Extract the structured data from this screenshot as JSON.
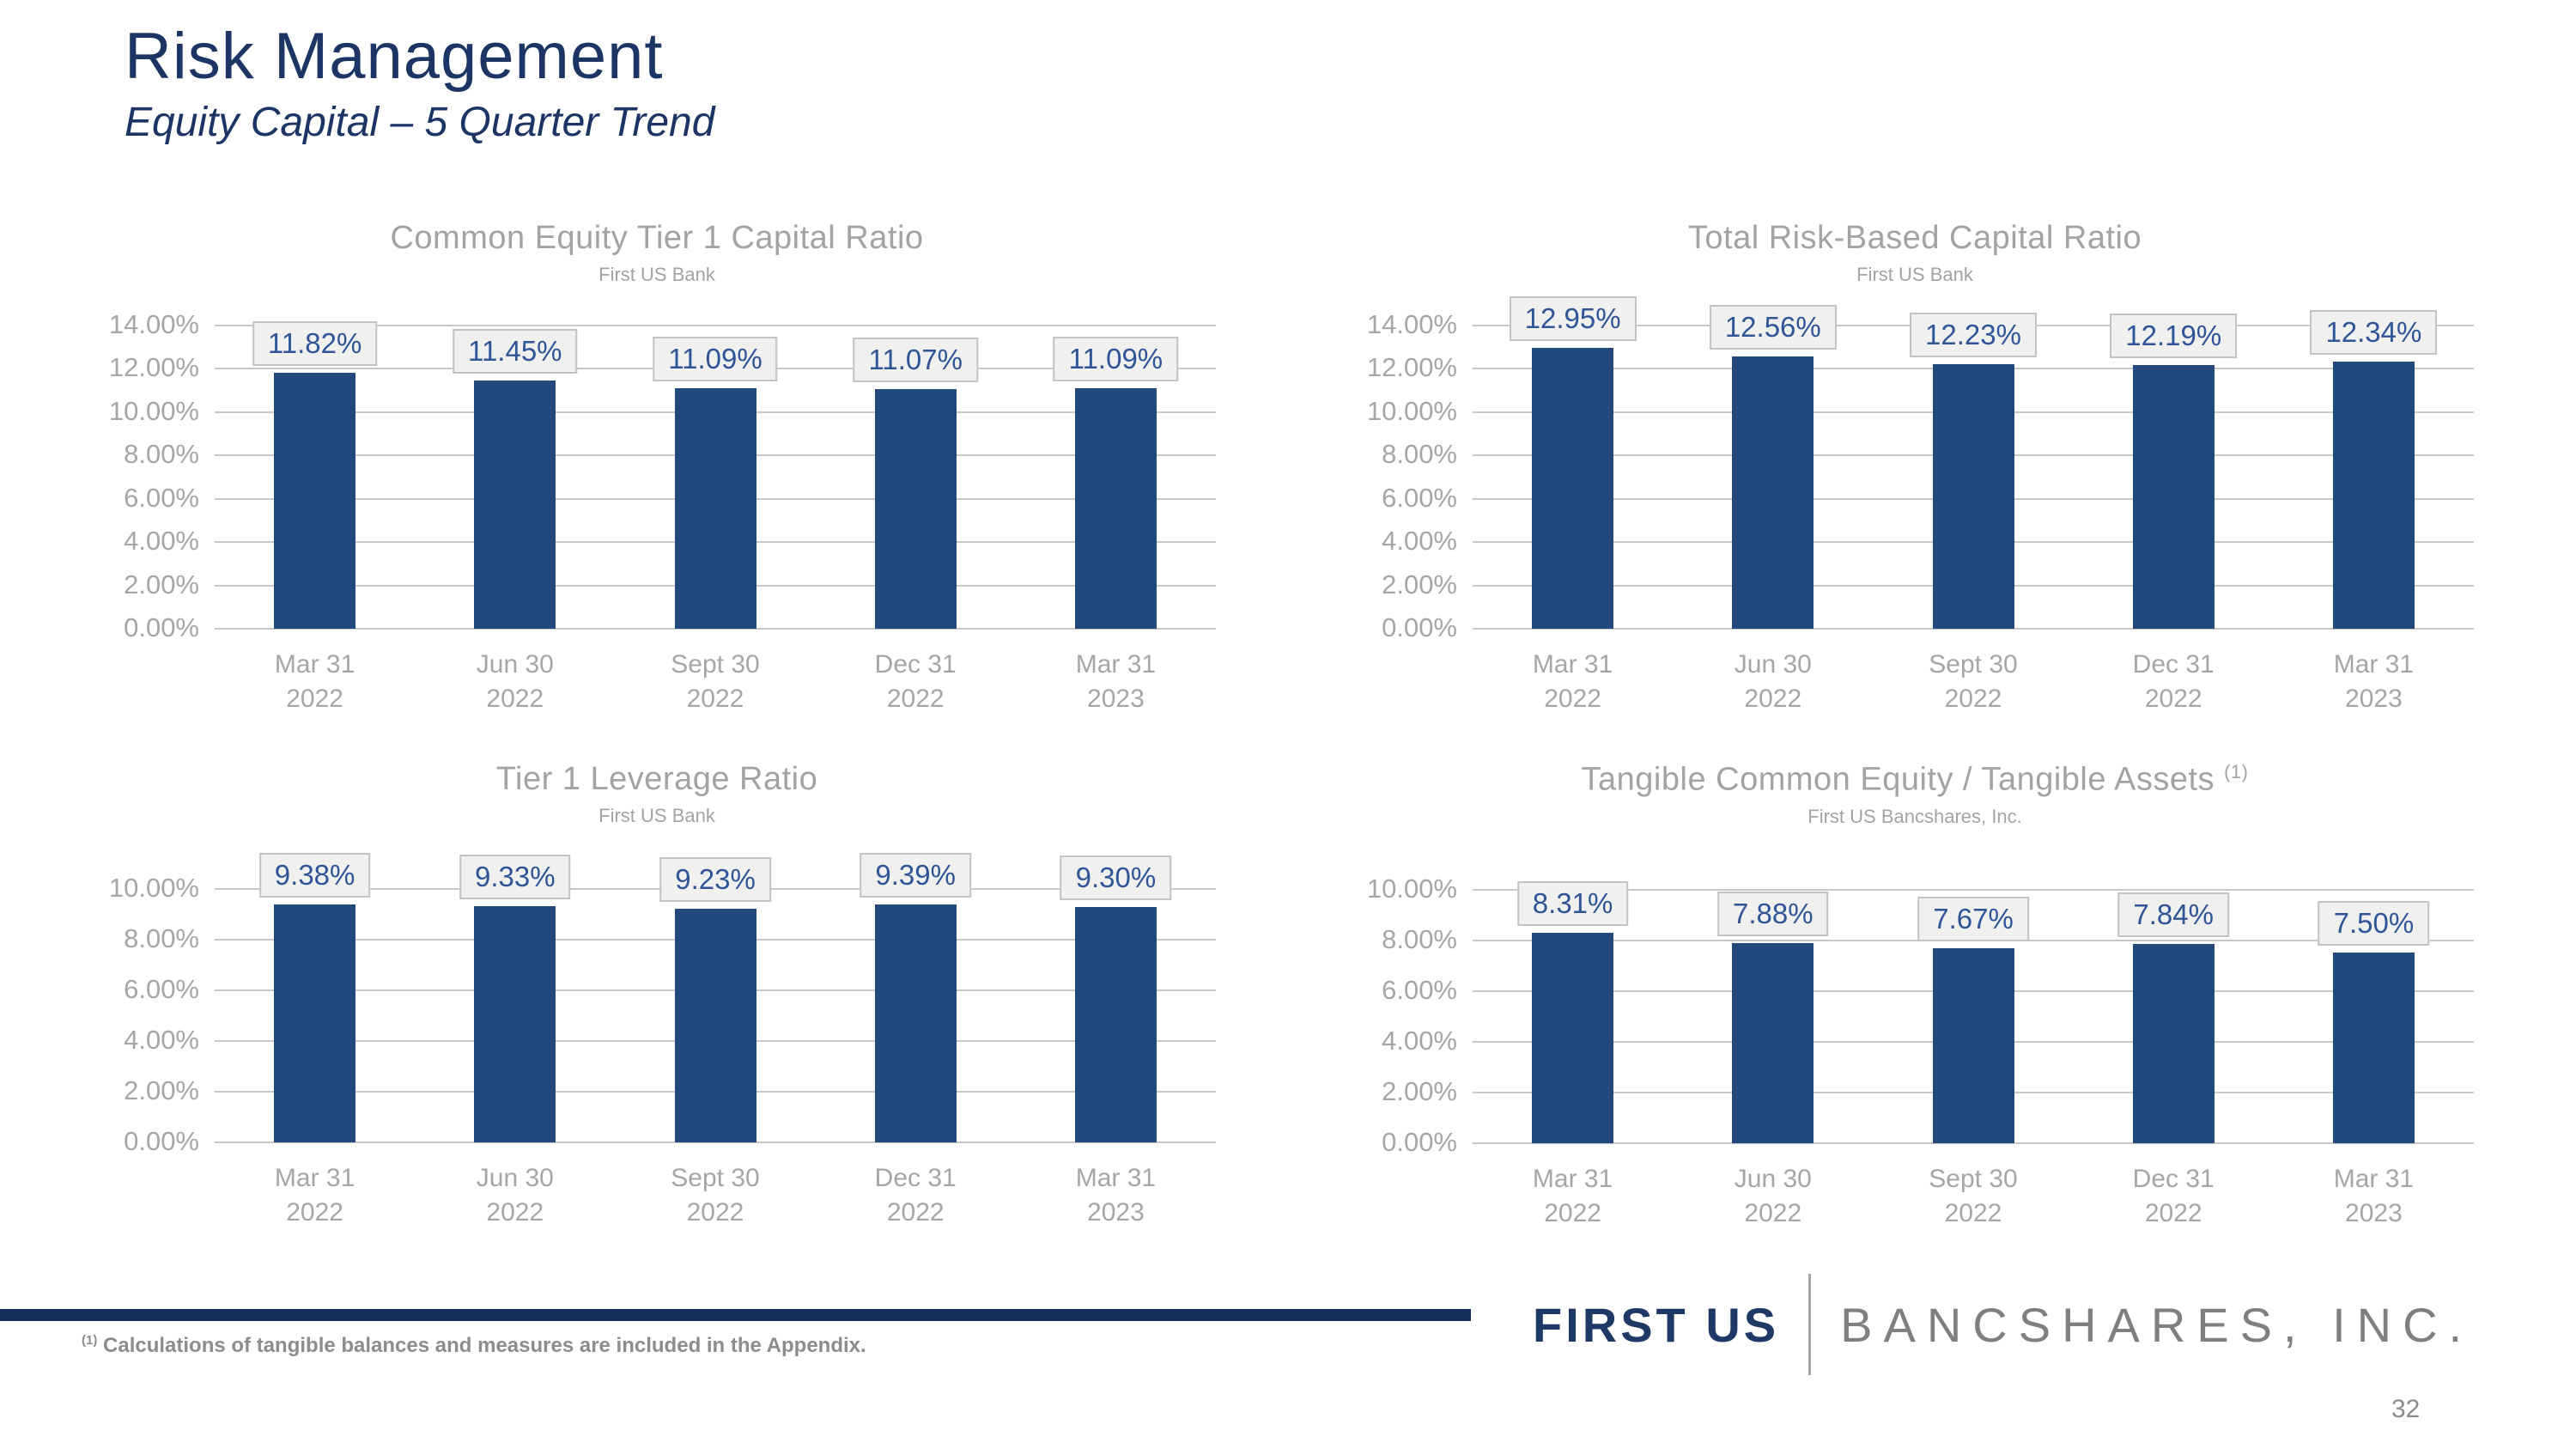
{
  "slide": {
    "title": "Risk Management",
    "subtitle": "Equity Capital – 5 Quarter Trend",
    "page_number": "32",
    "footnote_superscript": "(1)",
    "footnote_text": " Calculations of tangible balances and measures are included in the Appendix.",
    "logo": {
      "primary": "FIRST US",
      "secondary": "BANCSHARES, INC."
    }
  },
  "colors": {
    "title_navy": "#1C3564",
    "bar_fill": "#21497B",
    "chart_text_gray": "#A3A3A3",
    "gridline_gray": "#C8C8C8",
    "value_label_text": "#2F5597",
    "value_label_bg": "#F0F0EF",
    "value_label_border": "#C3C3C3",
    "footer_rule_navy": "#16305C",
    "logo_navy": "#1F3966",
    "logo_gray": "#7F7F7F",
    "footnote_gray": "#8C8C8C"
  },
  "chart_data": [
    {
      "type": "bar",
      "title": "Common Equity Tier 1 Capital Ratio",
      "subtitle": "First US Bank",
      "categories": [
        [
          "Mar 31",
          "2022"
        ],
        [
          "Jun 30",
          "2022"
        ],
        [
          "Sept 30",
          "2022"
        ],
        [
          "Dec 31",
          "2022"
        ],
        [
          "Mar 31",
          "2023"
        ]
      ],
      "values": [
        11.82,
        11.45,
        11.09,
        11.07,
        11.09
      ],
      "labels": [
        "11.82%",
        "11.45%",
        "11.09%",
        "11.07%",
        "11.09%"
      ],
      "ylabel": "",
      "ylim": [
        0,
        14
      ],
      "ytick_step": 2,
      "ytick_labels": [
        "0.00%",
        "2.00%",
        "4.00%",
        "6.00%",
        "8.00%",
        "10.00%",
        "12.00%",
        "14.00%"
      ],
      "grid": true,
      "legend": "none"
    },
    {
      "type": "bar",
      "title": "Total Risk-Based Capital Ratio",
      "subtitle": "First US Bank",
      "categories": [
        [
          "Mar 31",
          "2022"
        ],
        [
          "Jun 30",
          "2022"
        ],
        [
          "Sept 30",
          "2022"
        ],
        [
          "Dec 31",
          "2022"
        ],
        [
          "Mar 31",
          "2023"
        ]
      ],
      "values": [
        12.95,
        12.56,
        12.23,
        12.19,
        12.34
      ],
      "labels": [
        "12.95%",
        "12.56%",
        "12.23%",
        "12.19%",
        "12.34%"
      ],
      "ylabel": "",
      "ylim": [
        0,
        14
      ],
      "ytick_step": 2,
      "ytick_labels": [
        "0.00%",
        "2.00%",
        "4.00%",
        "6.00%",
        "8.00%",
        "10.00%",
        "12.00%",
        "14.00%"
      ],
      "grid": true,
      "legend": "none"
    },
    {
      "type": "bar",
      "title": "Tier 1 Leverage Ratio",
      "subtitle": "First US Bank",
      "categories": [
        [
          "Mar 31",
          "2022"
        ],
        [
          "Jun 30",
          "2022"
        ],
        [
          "Sept 30",
          "2022"
        ],
        [
          "Dec 31",
          "2022"
        ],
        [
          "Mar 31",
          "2023"
        ]
      ],
      "values": [
        9.38,
        9.33,
        9.23,
        9.39,
        9.3
      ],
      "labels": [
        "9.38%",
        "9.33%",
        "9.23%",
        "9.39%",
        "9.30%"
      ],
      "ylabel": "",
      "ylim": [
        0,
        10
      ],
      "ytick_step": 2,
      "ytick_labels": [
        "0.00%",
        "2.00%",
        "4.00%",
        "6.00%",
        "8.00%",
        "10.00%"
      ],
      "grid": true,
      "legend": "none"
    },
    {
      "type": "bar",
      "title": "Tangible Common Equity / Tangible Assets",
      "title_superscript": "(1)",
      "subtitle": "First US Bancshares, Inc.",
      "categories": [
        [
          "Mar 31",
          "2022"
        ],
        [
          "Jun 30",
          "2022"
        ],
        [
          "Sept 30",
          "2022"
        ],
        [
          "Dec 31",
          "2022"
        ],
        [
          "Mar 31",
          "2023"
        ]
      ],
      "values": [
        8.31,
        7.88,
        7.67,
        7.84,
        7.5
      ],
      "labels": [
        "8.31%",
        "7.88%",
        "7.67%",
        "7.84%",
        "7.50%"
      ],
      "ylabel": "",
      "ylim": [
        0,
        10
      ],
      "ytick_step": 2,
      "ytick_labels": [
        "0.00%",
        "2.00%",
        "4.00%",
        "6.00%",
        "8.00%",
        "10.00%"
      ],
      "grid": true,
      "legend": "none"
    }
  ]
}
